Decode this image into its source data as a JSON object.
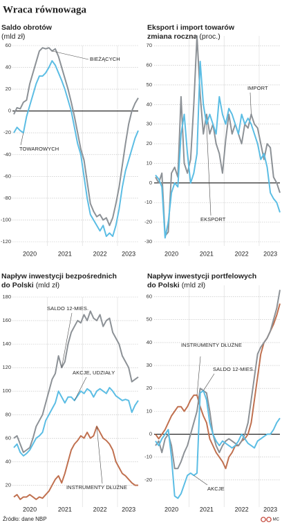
{
  "title": "Wraca równowaga",
  "source": "Źródło: dane NBP",
  "credit": "MC",
  "chart_data": [
    {
      "type": "line",
      "title": "Saldo obrotów",
      "unit": "(mld zł)",
      "categories": [
        null,
        null,
        null,
        null,
        null,
        "2020",
        null,
        null,
        null,
        null,
        null,
        null,
        null,
        null,
        null,
        null,
        "2021",
        null,
        null,
        null,
        null,
        null,
        null,
        null,
        null,
        null,
        null,
        "2022",
        null,
        null,
        null,
        null,
        null,
        null,
        null,
        null,
        "2023",
        null,
        null,
        null
      ],
      "ylim": [
        -120,
        60
      ],
      "yticks": [
        -120,
        -100,
        -80,
        -60,
        -40,
        -20,
        0,
        20,
        40,
        60
      ],
      "grid": true,
      "series": [
        {
          "name": "BIEŻĄCYCH",
          "color": "#8c9196",
          "values": [
            -3,
            3,
            2,
            8,
            10,
            25,
            35,
            45,
            55,
            58,
            57,
            58,
            55,
            57,
            50,
            40,
            30,
            20,
            8,
            -5,
            -20,
            -35,
            -45,
            -65,
            -85,
            -92,
            -97,
            -95,
            -100,
            -98,
            -105,
            -98,
            -85,
            -70,
            -50,
            -30,
            -12,
            0,
            7,
            12
          ]
        },
        {
          "name": "TOWAROWYCH",
          "color": "#5bbde4",
          "values": [
            -20,
            -15,
            -18,
            -20,
            -5,
            5,
            15,
            25,
            32,
            32,
            35,
            40,
            46,
            42,
            35,
            28,
            20,
            10,
            0,
            -15,
            -30,
            -40,
            -60,
            -80,
            -95,
            -100,
            -105,
            -110,
            -105,
            -115,
            -112,
            -115,
            -105,
            -90,
            -70,
            -55,
            -45,
            -35,
            -25,
            -18
          ]
        }
      ]
    },
    {
      "type": "line",
      "title": "Eksport i import towarów",
      "subtitle": "zmiana roczna",
      "unit": "(proc.)",
      "categories": [
        null,
        null,
        null,
        null,
        null,
        "2020",
        null,
        null,
        null,
        null,
        null,
        null,
        null,
        null,
        null,
        null,
        "2021",
        null,
        null,
        null,
        null,
        null,
        null,
        null,
        null,
        null,
        null,
        "2022",
        null,
        null,
        null,
        null,
        null,
        null,
        null,
        null,
        "2023",
        null,
        null,
        null
      ],
      "ylim": [
        -30,
        75
      ],
      "yticks": [
        -30,
        -20,
        -10,
        0,
        10,
        20,
        30,
        40,
        50,
        60,
        70
      ],
      "grid": true,
      "series": [
        {
          "name": "IMPORT",
          "color": "#8c9196",
          "values": [
            3,
            0,
            5,
            -27,
            -25,
            5,
            8,
            3,
            44,
            10,
            5,
            12,
            40,
            75,
            45,
            25,
            35,
            25,
            30,
            20,
            15,
            5,
            22,
            35,
            25,
            30,
            25,
            20,
            30,
            28,
            35,
            30,
            28,
            20,
            12,
            20,
            18,
            3,
            0,
            -5
          ]
        },
        {
          "name": "EKSPORT",
          "color": "#5bbde4",
          "values": [
            4,
            2,
            -2,
            -28,
            -20,
            -5,
            0,
            -2,
            25,
            35,
            15,
            0,
            5,
            15,
            62,
            40,
            30,
            35,
            30,
            25,
            44,
            35,
            30,
            38,
            35,
            30,
            25,
            35,
            30,
            33,
            30,
            25,
            20,
            12,
            15,
            8,
            -5,
            -8,
            -10,
            -15
          ]
        }
      ]
    },
    {
      "type": "line",
      "title": "Napływ inwestycji bezpośrednich",
      "subtitle": "do Polski",
      "unit": "(mld zł)",
      "categories": [
        null,
        null,
        null,
        null,
        null,
        "2020",
        null,
        null,
        null,
        null,
        null,
        null,
        null,
        null,
        null,
        null,
        "2021",
        null,
        null,
        null,
        null,
        null,
        null,
        null,
        null,
        null,
        null,
        "2022",
        null,
        null,
        null,
        null,
        null,
        null,
        null,
        null,
        "2023",
        null,
        null,
        null
      ],
      "ylim": [
        5,
        180
      ],
      "yticks": [
        20,
        40,
        60,
        80,
        100,
        120,
        140,
        160,
        180
      ],
      "grid": true,
      "series": [
        {
          "name": "SALDO 12-MIES.",
          "color": "#8c9196",
          "values": [
            60,
            62,
            55,
            48,
            50,
            52,
            60,
            70,
            75,
            80,
            90,
            100,
            110,
            115,
            130,
            120,
            125,
            140,
            150,
            155,
            160,
            158,
            165,
            160,
            168,
            162,
            160,
            165,
            155,
            160,
            162,
            150,
            145,
            140,
            130,
            125,
            120,
            108,
            110,
            112
          ]
        },
        {
          "name": "AKCJE, UDZIAŁY",
          "color": "#5bbde4",
          "values": [
            52,
            55,
            48,
            45,
            47,
            50,
            55,
            60,
            62,
            65,
            75,
            80,
            85,
            90,
            100,
            95,
            90,
            95,
            95,
            92,
            96,
            100,
            98,
            102,
            100,
            95,
            100,
            102,
            100,
            98,
            103,
            100,
            96,
            94,
            92,
            93,
            92,
            82,
            88,
            92
          ]
        },
        {
          "name": "INSTRUMENTY DŁUŻNE",
          "color": "#c0704f",
          "values": [
            10,
            12,
            8,
            10,
            10,
            12,
            10,
            8,
            10,
            9,
            12,
            15,
            20,
            25,
            28,
            22,
            30,
            40,
            50,
            55,
            58,
            62,
            60,
            65,
            60,
            62,
            70,
            65,
            60,
            58,
            55,
            50,
            40,
            35,
            30,
            28,
            25,
            22,
            20,
            20
          ]
        }
      ]
    },
    {
      "type": "line",
      "title": "Napływ inwestycji portfelowych",
      "subtitle": "do Polski",
      "unit": "(mld zł)",
      "categories": [
        null,
        null,
        null,
        null,
        null,
        "2020",
        null,
        null,
        null,
        null,
        null,
        null,
        null,
        null,
        null,
        null,
        "2021",
        null,
        null,
        null,
        null,
        null,
        null,
        null,
        null,
        null,
        null,
        "2022",
        null,
        null,
        null,
        null,
        null,
        null,
        null,
        null,
        "2023",
        null,
        null,
        null
      ],
      "ylim": [
        -30,
        65
      ],
      "yticks": [
        -20,
        -10,
        0,
        10,
        20,
        30,
        40,
        50,
        60
      ],
      "grid": true,
      "series": [
        {
          "name": "INSTRUMENTY DŁUŻNE",
          "color": "#c0704f",
          "values": [
            0,
            -2,
            0,
            2,
            5,
            8,
            10,
            12,
            12,
            10,
            12,
            15,
            17,
            17,
            12,
            8,
            5,
            -2,
            -5,
            -8,
            -10,
            -12,
            -15,
            -10,
            -8,
            -5,
            -5,
            -3,
            -2,
            0,
            5,
            15,
            25,
            35,
            40,
            42,
            45,
            48,
            52,
            57
          ]
        },
        {
          "name": "SALDO 12-MIES.",
          "color": "#8c9196",
          "values": [
            -5,
            -3,
            -8,
            -2,
            0,
            -5,
            -15,
            -15,
            -12,
            -8,
            -5,
            0,
            5,
            10,
            20,
            19,
            18,
            10,
            0,
            -5,
            -8,
            -5,
            -3,
            -2,
            -3,
            -4,
            -5,
            -3,
            0,
            5,
            15,
            25,
            35,
            38,
            40,
            42,
            45,
            50,
            55,
            63
          ]
        },
        {
          "name": "AKCJE",
          "color": "#5bbde4",
          "values": [
            -3,
            -5,
            -2,
            0,
            2,
            -10,
            -27,
            -28,
            -26,
            -22,
            -18,
            -17,
            -18,
            -17,
            18,
            19,
            15,
            5,
            0,
            -3,
            -5,
            -3,
            -4,
            -5,
            -6,
            -5,
            -3,
            0,
            -2,
            -4,
            -5,
            -6,
            -3,
            -2,
            -1,
            0,
            0,
            2,
            5,
            7
          ]
        }
      ]
    }
  ]
}
